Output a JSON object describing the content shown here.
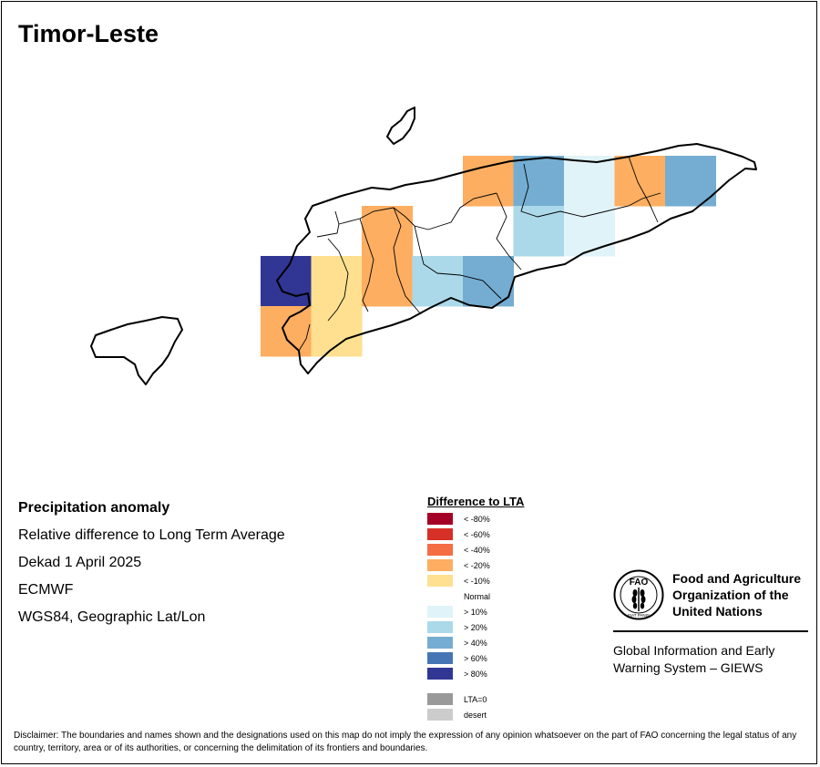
{
  "map": {
    "title": "Timor-Leste",
    "grid_cells": [
      {
        "row": 0,
        "col": 4,
        "cls": "< -20%"
      },
      {
        "row": 0,
        "col": 5,
        "cls": "> 40%"
      },
      {
        "row": 0,
        "col": 6,
        "cls": "> 10%"
      },
      {
        "row": 0,
        "col": 7,
        "cls": "< -20%"
      },
      {
        "row": 0,
        "col": 8,
        "cls": "> 40%"
      },
      {
        "row": 1,
        "col": 2,
        "cls": "< -20%"
      },
      {
        "row": 1,
        "col": 5,
        "cls": "> 20%"
      },
      {
        "row": 1,
        "col": 6,
        "cls": "> 10%"
      },
      {
        "row": 2,
        "col": 0,
        "cls": "> 80%"
      },
      {
        "row": 2,
        "col": 1,
        "cls": "< -10%"
      },
      {
        "row": 2,
        "col": 2,
        "cls": "< -20%"
      },
      {
        "row": 2,
        "col": 3,
        "cls": "> 20%"
      },
      {
        "row": 2,
        "col": 4,
        "cls": "> 40%"
      },
      {
        "row": 3,
        "col": 0,
        "cls": "< -20%"
      },
      {
        "row": 3,
        "col": 1,
        "cls": "< -10%"
      }
    ]
  },
  "info": {
    "line1": "Precipitation anomaly",
    "line2": "Relative difference to Long Term Average",
    "line3": "Dekad 1 April 2025",
    "line4": "ECMWF",
    "line5": "WGS84, Geographic Lat/Lon"
  },
  "legend": {
    "title": "Difference to LTA",
    "items": [
      {
        "label": "< -80%",
        "color": "#a50026"
      },
      {
        "label": "< -60%",
        "color": "#d73027"
      },
      {
        "label": "< -40%",
        "color": "#f46d43"
      },
      {
        "label": "< -20%",
        "color": "#fdae61"
      },
      {
        "label": "< -10%",
        "color": "#fee090"
      },
      {
        "label": "Normal",
        "color": "#ffffff"
      },
      {
        "label": "> 10%",
        "color": "#e0f3f8"
      },
      {
        "label": "> 20%",
        "color": "#abd9e9"
      },
      {
        "label": "> 40%",
        "color": "#74add1"
      },
      {
        "label": "> 60%",
        "color": "#4575b4"
      },
      {
        "label": "> 80%",
        "color": "#313695"
      }
    ],
    "extra": [
      {
        "label": "LTA=0",
        "color": "#999999"
      },
      {
        "label": "desert",
        "color": "#cccccc"
      }
    ]
  },
  "fao": {
    "logo_text_top": "FAO",
    "logo_text_bottom": "FIAT PANIS",
    "name_line1": "Food and Agriculture",
    "name_line2": "Organization of the",
    "name_line3": "United Nations",
    "giews_line1": "Global Information and Early",
    "giews_line2": "Warning System – GIEWS"
  },
  "disclaimer": "Disclaimer: The boundaries and names shown and the designations used on this map do not imply the expression of any opinion whatsoever on the part of FAO concerning the legal status of any country, territory, area or of its authorities, or concerning the delimitation of its frontiers and boundaries."
}
